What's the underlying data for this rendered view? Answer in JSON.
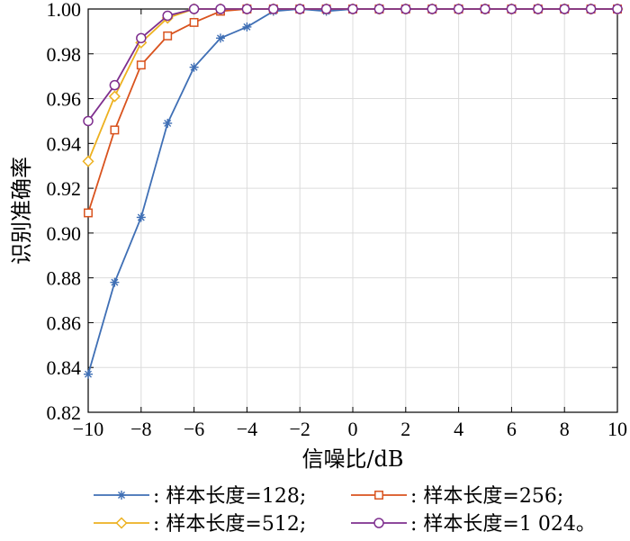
{
  "chart_data": {
    "type": "line",
    "xlabel": "信噪比/dB",
    "ylabel": "识别准确率",
    "xlim": [
      -10,
      10
    ],
    "ylim": [
      0.82,
      1.0
    ],
    "x_ticks": [
      -10,
      -8,
      -6,
      -4,
      -2,
      0,
      2,
      4,
      6,
      8,
      10
    ],
    "x_tick_labels": [
      "−10",
      "−8",
      "−6",
      "−4",
      "−2",
      "0",
      "2",
      "4",
      "6",
      "8",
      "10"
    ],
    "y_ticks": [
      0.82,
      0.84,
      0.86,
      0.88,
      0.9,
      0.92,
      0.94,
      0.96,
      0.98,
      1.0
    ],
    "y_tick_labels": [
      "0.82",
      "0.84",
      "0.86",
      "0.88",
      "0.90",
      "0.92",
      "0.94",
      "0.96",
      "0.98",
      "1.00"
    ],
    "grid": true,
    "legend_placement": "bottom",
    "x": [
      -10,
      -9,
      -8,
      -7,
      -6,
      -5,
      -4,
      -3,
      -2,
      -1,
      0,
      1,
      2,
      3,
      4,
      5,
      6,
      7,
      8,
      9,
      10
    ],
    "series": [
      {
        "name": ": 样本长度=128;",
        "color": "#3f6fb5",
        "marker": "asterisk",
        "values": [
          0.837,
          0.878,
          0.907,
          0.949,
          0.974,
          0.987,
          0.992,
          0.999,
          1.0,
          0.999,
          1.0,
          1.0,
          1.0,
          1.0,
          1.0,
          1.0,
          1.0,
          1.0,
          1.0,
          1.0,
          1.0
        ]
      },
      {
        "name": ": 样本长度=256;",
        "color": "#d9531e",
        "marker": "square",
        "values": [
          0.909,
          0.946,
          0.975,
          0.988,
          0.994,
          0.999,
          1.0,
          1.0,
          1.0,
          1.0,
          1.0,
          1.0,
          1.0,
          1.0,
          1.0,
          1.0,
          1.0,
          1.0,
          1.0,
          1.0,
          1.0
        ]
      },
      {
        "name": ": 样本长度=512;",
        "color": "#edb120",
        "marker": "diamond",
        "values": [
          0.932,
          0.961,
          0.985,
          0.996,
          1.0,
          1.0,
          1.0,
          1.0,
          1.0,
          1.0,
          1.0,
          1.0,
          1.0,
          1.0,
          1.0,
          1.0,
          1.0,
          1.0,
          1.0,
          1.0,
          1.0
        ]
      },
      {
        "name": ": 样本长度=1 024。",
        "color": "#7e2f8e",
        "marker": "circle",
        "values": [
          0.95,
          0.966,
          0.987,
          0.997,
          1.0,
          1.0,
          1.0,
          1.0,
          1.0,
          1.0,
          1.0,
          1.0,
          1.0,
          1.0,
          1.0,
          1.0,
          1.0,
          1.0,
          1.0,
          1.0,
          1.0
        ]
      }
    ]
  }
}
